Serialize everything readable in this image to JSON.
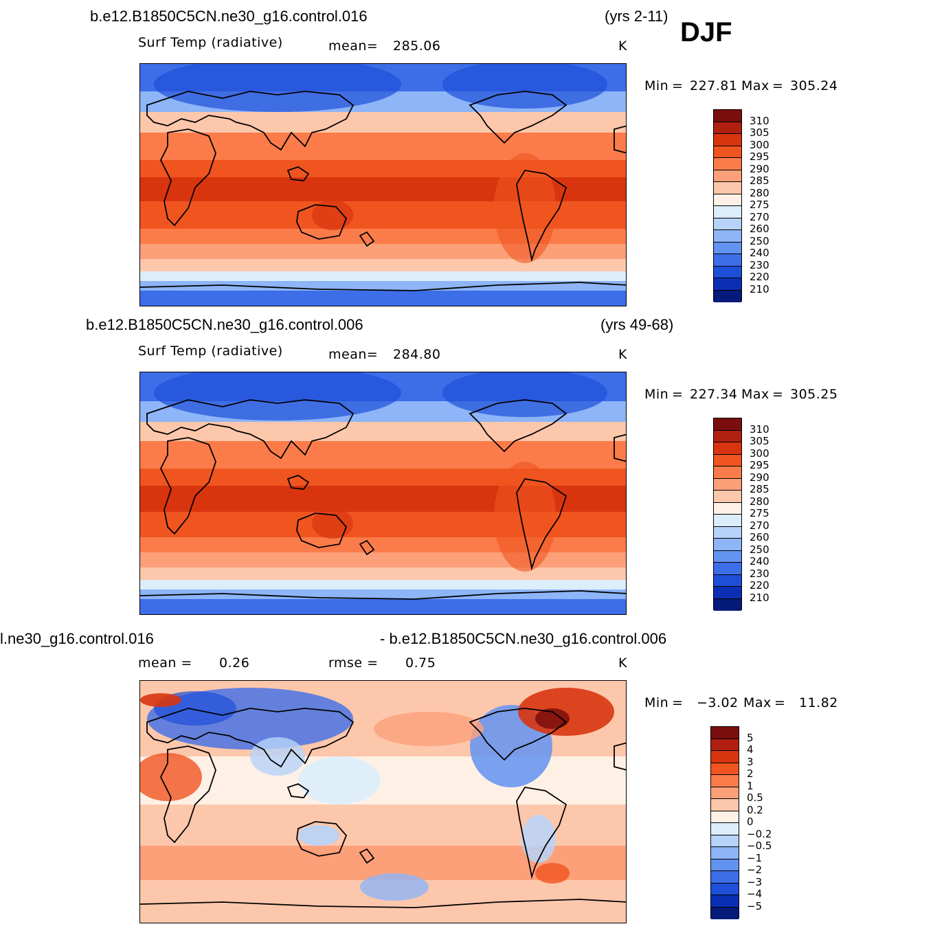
{
  "season": "DJF",
  "panels": [
    {
      "case_name": "b.e12.B1850C5CN.ne30_g16.control.016",
      "years": "(yrs 2-11)",
      "variable": "Surf Temp (radiative)",
      "mean_label": "mean=",
      "mean_value": "285.06",
      "units": "K",
      "min_label": "Min",
      "min_value": "227.81",
      "max_label": "Max",
      "max_value": "305.24",
      "eq": "=",
      "colorbar": {
        "labels": [
          "310",
          "305",
          "300",
          "295",
          "290",
          "285",
          "280",
          "275",
          "270",
          "260",
          "250",
          "240",
          "230",
          "220",
          "210"
        ],
        "colors": [
          "#7a0d0d",
          "#b01f10",
          "#d8350f",
          "#f05520",
          "#fb7c4a",
          "#fca07a",
          "#fdc7ab",
          "#fff0e6",
          "#dceefb",
          "#b7d3fa",
          "#8db5f7",
          "#6393f1",
          "#3d6ee8",
          "#1e4fd9",
          "#0a2fb5",
          "#061a7a"
        ]
      }
    },
    {
      "case_name": "b.e12.B1850C5CN.ne30_g16.control.006",
      "years": "(yrs 49-68)",
      "variable": "Surf Temp (radiative)",
      "mean_label": "mean=",
      "mean_value": "284.80",
      "units": "K",
      "min_label": "Min",
      "min_value": "227.34",
      "max_label": "Max",
      "max_value": "305.25",
      "eq": "=",
      "colorbar": {
        "labels": [
          "310",
          "305",
          "300",
          "295",
          "290",
          "285",
          "280",
          "275",
          "270",
          "260",
          "250",
          "240",
          "230",
          "220",
          "210"
        ],
        "colors": [
          "#7a0d0d",
          "#b01f10",
          "#d8350f",
          "#f05520",
          "#fb7c4a",
          "#fca07a",
          "#fdc7ab",
          "#fff0e6",
          "#dceefb",
          "#b7d3fa",
          "#8db5f7",
          "#6393f1",
          "#3d6ee8",
          "#1e4fd9",
          "#0a2fb5",
          "#061a7a"
        ]
      }
    },
    {
      "diff_left": "l.ne30_g16.control.016",
      "diff_right": "- b.e12.B1850C5CN.ne30_g16.control.006",
      "mean_label": "mean =",
      "mean_value": "0.26",
      "rmse_label": "rmse =",
      "rmse_value": "0.75",
      "units": "K",
      "min_label": "Min",
      "min_value": "−3.02",
      "max_label": "Max",
      "max_value": "11.82",
      "eq": "=",
      "colorbar": {
        "labels": [
          "5",
          "4",
          "3",
          "2",
          "1",
          "0.5",
          "0.2",
          "0",
          "−0.2",
          "−0.5",
          "−1",
          "−2",
          "−3",
          "−4",
          "−5"
        ],
        "colors": [
          "#7a0d0d",
          "#b01f10",
          "#d8350f",
          "#f05520",
          "#fb7c4a",
          "#fca07a",
          "#fdc7ab",
          "#fff0e6",
          "#dceefb",
          "#b7d3fa",
          "#8db5f7",
          "#6393f1",
          "#3d6ee8",
          "#1e4fd9",
          "#0a2fb5",
          "#061a7a"
        ]
      }
    }
  ]
}
